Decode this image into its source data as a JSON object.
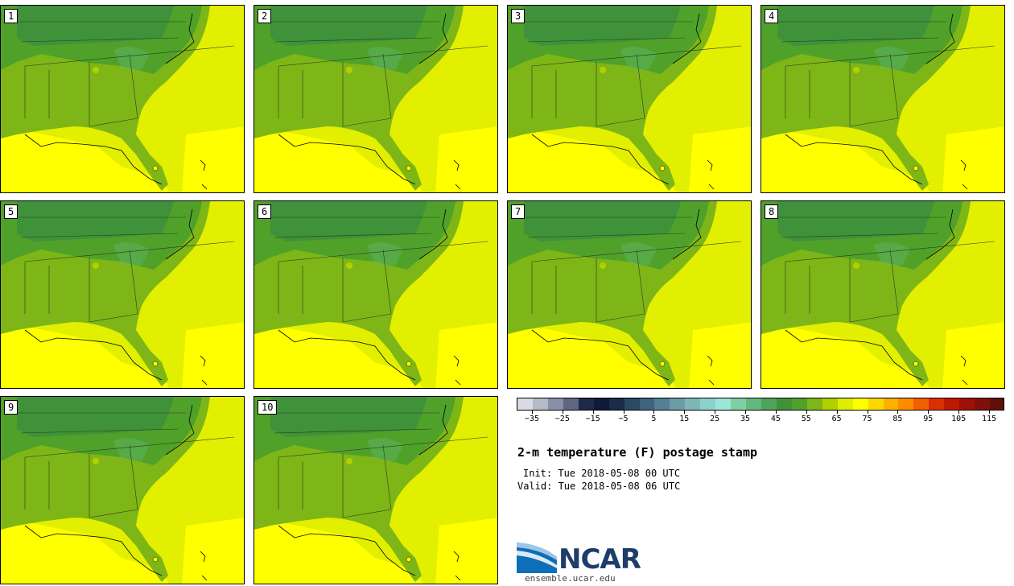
{
  "panels": [
    {
      "label": "1"
    },
    {
      "label": "2"
    },
    {
      "label": "3"
    },
    {
      "label": "4"
    },
    {
      "label": "5"
    },
    {
      "label": "6"
    },
    {
      "label": "7"
    },
    {
      "label": "8"
    },
    {
      "label": "9"
    },
    {
      "label": "10"
    }
  ],
  "colorbar": {
    "colors": [
      "#d8dbe3",
      "#b5b9c8",
      "#8a90a8",
      "#5f6683",
      "#1f2a47",
      "#0f1a36",
      "#1a2c4a",
      "#2c4863",
      "#3f647d",
      "#577f93",
      "#6d9ba6",
      "#7fb7b9",
      "#8dd1cb",
      "#9be6d8",
      "#80cfa4",
      "#62b97f",
      "#4ea45b",
      "#3f9239",
      "#50a12a",
      "#7eb617",
      "#b0d000",
      "#dfee00",
      "#ffff00",
      "#ffd700",
      "#ffb000",
      "#ff8c00",
      "#f06000",
      "#d83000",
      "#bf1800",
      "#a01008",
      "#80100a",
      "#601008"
    ],
    "ticks": [
      "−35",
      "−25",
      "−15",
      "−5",
      "5",
      "15",
      "25",
      "35",
      "45",
      "55",
      "65",
      "75",
      "85",
      "95",
      "105",
      "115"
    ],
    "range": [
      -40,
      120
    ]
  },
  "title": "2-m temperature (F) postage stamp",
  "init": "Init: Tue 2018-05-08 00 UTC",
  "valid": "Valid: Tue 2018-05-08 06 UTC",
  "logo": {
    "text": "NCAR",
    "url": "ensemble.ucar.edu"
  }
}
